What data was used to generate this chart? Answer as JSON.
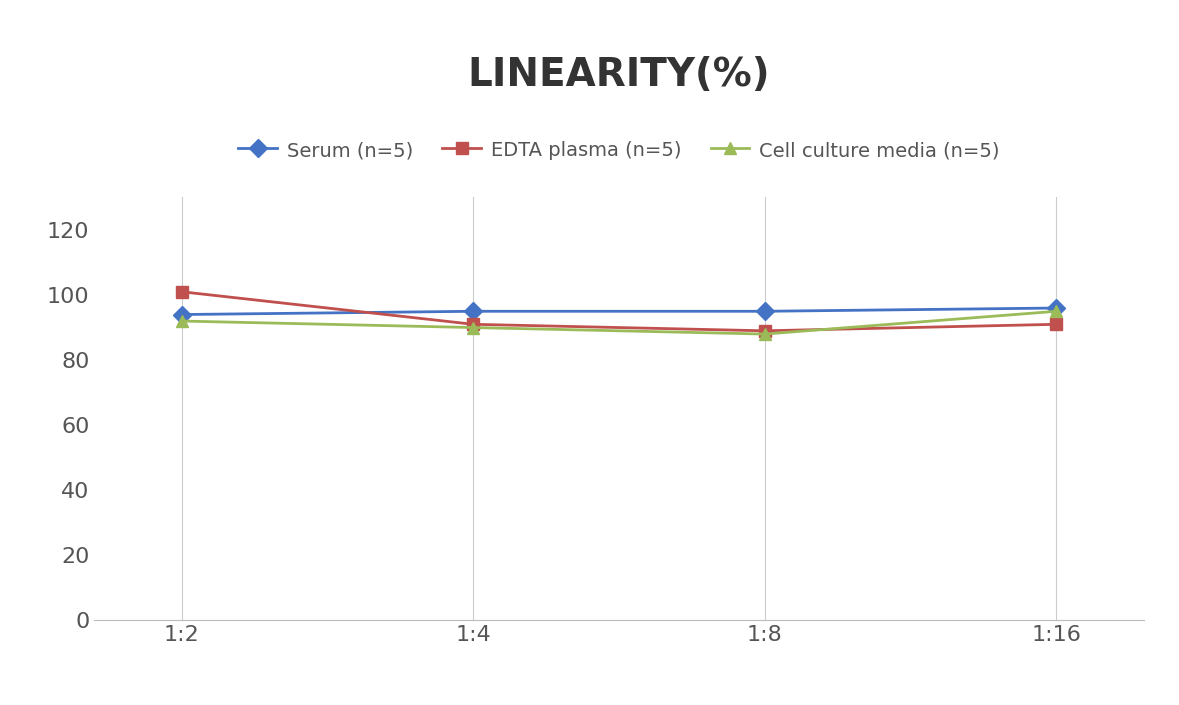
{
  "title": "LINEARITY(%)",
  "x_labels": [
    "1:2",
    "1:4",
    "1:8",
    "1:16"
  ],
  "x_positions": [
    0,
    1,
    2,
    3
  ],
  "series": [
    {
      "label": "Serum (n=5)",
      "color": "#4472C4",
      "marker": "D",
      "values": [
        94,
        95,
        95,
        96
      ]
    },
    {
      "label": "EDTA plasma (n=5)",
      "color": "#C0504D",
      "marker": "s",
      "values": [
        101,
        91,
        89,
        91
      ]
    },
    {
      "label": "Cell culture media (n=5)",
      "color": "#9BBB59",
      "marker": "^",
      "values": [
        92,
        90,
        88,
        95
      ]
    }
  ],
  "ylim": [
    0,
    130
  ],
  "yticks": [
    0,
    20,
    40,
    60,
    80,
    100,
    120
  ],
  "background_color": "#ffffff",
  "title_fontsize": 28,
  "legend_fontsize": 14,
  "tick_fontsize": 16
}
